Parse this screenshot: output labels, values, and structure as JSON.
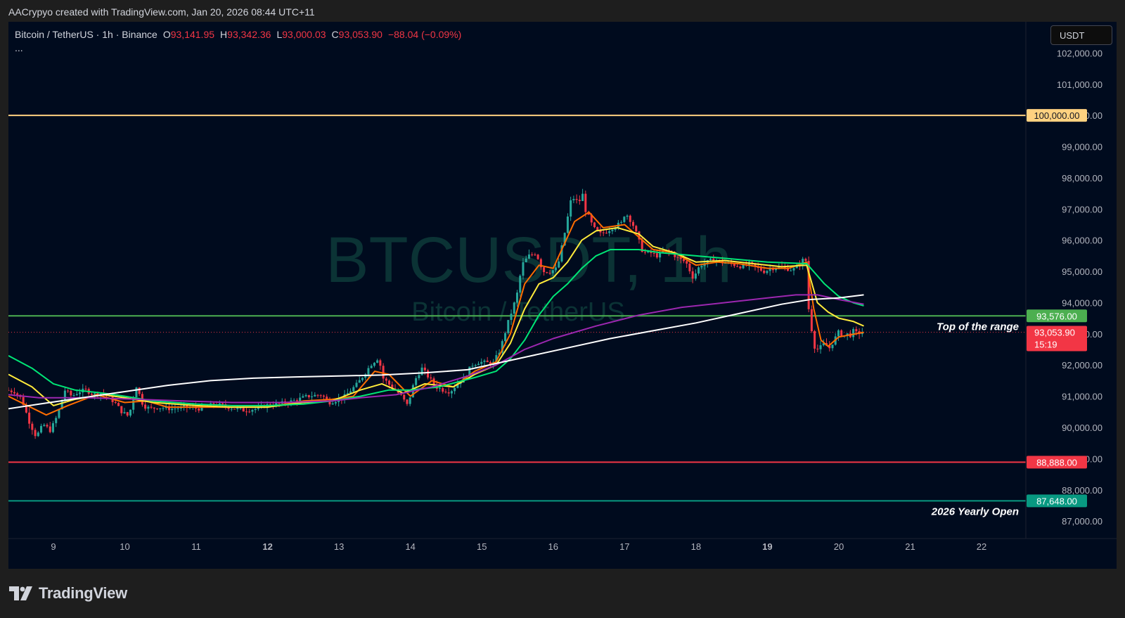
{
  "header": {
    "credit": "AACrypyo created with TradingView.com, Jan 20, 2026 08:44 UTC+11"
  },
  "legend": {
    "symbol": "Bitcoin / TetherUS · 1h · Binance",
    "open_label": "O",
    "open": "93,141.95",
    "high_label": "H",
    "high": "93,342.36",
    "low_label": "L",
    "low": "93,000.03",
    "close_label": "C",
    "close": "93,053.90",
    "change": "−88.04 (−0.09%)",
    "more": "..."
  },
  "currency_button": "USDT",
  "watermark": {
    "ticker": "BTCUSDT, 1h",
    "name": "Bitcoin / TetherUS"
  },
  "brand": {
    "name": "TradingView"
  },
  "colors": {
    "up": "#26a69a",
    "down": "#f23645",
    "ema_fast": "#ff6d00",
    "ema_mid": "#ffeb3b",
    "ema_slow": "#00e676",
    "ma_purple": "#9c27b0",
    "ma_white": "#ffffff",
    "level_100k": "#ffd180",
    "level_range": "#4caf50",
    "level_88888": "#f23645",
    "level_open": "#089981"
  },
  "chart_data": {
    "type": "candlestick",
    "x_axis": {
      "ticks": [
        {
          "day": 9,
          "label": "9"
        },
        {
          "day": 10,
          "label": "10"
        },
        {
          "day": 11,
          "label": "11"
        },
        {
          "day": 12,
          "label": "12",
          "bold": true
        },
        {
          "day": 13,
          "label": "13"
        },
        {
          "day": 14,
          "label": "14"
        },
        {
          "day": 15,
          "label": "15"
        },
        {
          "day": 16,
          "label": "16"
        },
        {
          "day": 17,
          "label": "17"
        },
        {
          "day": 18,
          "label": "18"
        },
        {
          "day": 19,
          "label": "19",
          "bold": true
        },
        {
          "day": 20,
          "label": "20"
        },
        {
          "day": 21,
          "label": "21"
        },
        {
          "day": 22,
          "label": "22"
        }
      ],
      "range_days": [
        8.37,
        22.62
      ]
    },
    "y_axis": {
      "ticks": [
        87000,
        88000,
        89000,
        90000,
        91000,
        92000,
        93000,
        94000,
        95000,
        96000,
        97000,
        98000,
        99000,
        100000,
        101000,
        102000
      ],
      "tick_labels": [
        "87,000.00",
        "88,000.00",
        "89,000.00",
        "90,000.00",
        "91,000.00",
        "92,000.00",
        "93,000.00",
        "94,000.00",
        "95,000.00",
        "96,000.00",
        "97,000.00",
        "98,000.00",
        "99,000.00",
        "100,000.00",
        "101,000.00",
        "102,000.00"
      ],
      "range": [
        86440,
        103000
      ]
    },
    "horizontal_levels": [
      {
        "name": "100k",
        "value": 100000,
        "label": "100,000.00",
        "color": "#ffd180",
        "text_color": "#131722"
      },
      {
        "name": "top-of-range",
        "value": 93576,
        "label": "93,576.00",
        "color": "#4caf50",
        "text_color": "#ffffff",
        "annotation": "Top of the range"
      },
      {
        "name": "level-88888",
        "value": 88888,
        "label": "88,888.00",
        "color": "#f23645",
        "text_color": "#ffffff"
      },
      {
        "name": "yearly-open",
        "value": 87648,
        "label": "87,648.00",
        "color": "#089981",
        "text_color": "#ffffff",
        "annotation": "2026 Yearly Open"
      }
    ],
    "last_price": {
      "value": 93053.9,
      "label": "93,053.90",
      "countdown": "15:19",
      "color": "#f23645"
    },
    "price_path": [
      [
        8.37,
        91200
      ],
      [
        8.5,
        91150
      ],
      [
        8.6,
        90900
      ],
      [
        8.7,
        90200
      ],
      [
        8.8,
        89700
      ],
      [
        8.9,
        90100
      ],
      [
        9.0,
        89900
      ],
      [
        9.1,
        90400
      ],
      [
        9.2,
        91200
      ],
      [
        9.3,
        91000
      ],
      [
        9.4,
        91150
      ],
      [
        9.5,
        91200
      ],
      [
        9.6,
        91050
      ],
      [
        9.7,
        91100
      ],
      [
        9.8,
        91000
      ],
      [
        9.9,
        90800
      ],
      [
        10.0,
        90500
      ],
      [
        10.1,
        90350
      ],
      [
        10.15,
        90900
      ],
      [
        10.2,
        91350
      ],
      [
        10.3,
        90700
      ],
      [
        10.4,
        90600
      ],
      [
        10.5,
        90650
      ],
      [
        10.7,
        90600
      ],
      [
        10.9,
        90650
      ],
      [
        11.1,
        90600
      ],
      [
        11.3,
        90750
      ],
      [
        11.5,
        90650
      ],
      [
        11.7,
        90550
      ],
      [
        11.9,
        90600
      ],
      [
        12.0,
        90700
      ],
      [
        12.2,
        90750
      ],
      [
        12.4,
        90850
      ],
      [
        12.6,
        91000
      ],
      [
        12.8,
        91050
      ],
      [
        12.9,
        90800
      ],
      [
        13.1,
        90950
      ],
      [
        13.3,
        91400
      ],
      [
        13.5,
        92050
      ],
      [
        13.6,
        92250
      ],
      [
        13.65,
        91600
      ],
      [
        13.8,
        91250
      ],
      [
        13.9,
        91050
      ],
      [
        14.0,
        90700
      ],
      [
        14.1,
        91500
      ],
      [
        14.2,
        91900
      ],
      [
        14.3,
        91600
      ],
      [
        14.4,
        91300
      ],
      [
        14.5,
        91200
      ],
      [
        14.6,
        91150
      ],
      [
        14.7,
        91400
      ],
      [
        14.8,
        91600
      ],
      [
        14.9,
        92000
      ],
      [
        15.0,
        92100
      ],
      [
        15.2,
        92050
      ],
      [
        15.3,
        92500
      ],
      [
        15.4,
        93300
      ],
      [
        15.5,
        94000
      ],
      [
        15.55,
        94400
      ],
      [
        15.6,
        95200
      ],
      [
        15.7,
        95500
      ],
      [
        15.8,
        95600
      ],
      [
        15.9,
        95000
      ],
      [
        16.0,
        95000
      ],
      [
        16.1,
        95100
      ],
      [
        16.2,
        96200
      ],
      [
        16.25,
        96800
      ],
      [
        16.3,
        97400
      ],
      [
        16.4,
        97200
      ],
      [
        16.45,
        97500
      ],
      [
        16.5,
        96900
      ],
      [
        16.55,
        96700
      ],
      [
        16.6,
        96400
      ],
      [
        16.7,
        96200
      ],
      [
        16.8,
        96300
      ],
      [
        16.9,
        96450
      ],
      [
        17.0,
        96550
      ],
      [
        17.05,
        96900
      ],
      [
        17.15,
        96550
      ],
      [
        17.2,
        96250
      ],
      [
        17.3,
        95600
      ],
      [
        17.4,
        95600
      ],
      [
        17.5,
        95500
      ],
      [
        17.6,
        95650
      ],
      [
        17.7,
        95600
      ],
      [
        17.8,
        95400
      ],
      [
        17.9,
        95300
      ],
      [
        18.0,
        94800
      ],
      [
        18.1,
        95200
      ],
      [
        18.2,
        95300
      ],
      [
        18.3,
        95400
      ],
      [
        18.4,
        95300
      ],
      [
        18.5,
        95250
      ],
      [
        18.6,
        95200
      ],
      [
        18.7,
        95150
      ],
      [
        18.8,
        95250
      ],
      [
        18.9,
        95100
      ],
      [
        19.0,
        95000
      ],
      [
        19.1,
        95100
      ],
      [
        19.2,
        95150
      ],
      [
        19.3,
        95100
      ],
      [
        19.4,
        95050
      ],
      [
        19.5,
        95250
      ],
      [
        19.55,
        95400
      ],
      [
        19.6,
        95300
      ],
      [
        19.62,
        93800
      ],
      [
        19.65,
        93300
      ],
      [
        19.7,
        92600
      ],
      [
        19.75,
        92500
      ],
      [
        19.8,
        92600
      ],
      [
        19.85,
        92700
      ],
      [
        19.9,
        92500
      ],
      [
        19.95,
        92700
      ],
      [
        20.0,
        92900
      ],
      [
        20.05,
        93100
      ],
      [
        20.1,
        92900
      ],
      [
        20.15,
        93000
      ],
      [
        20.2,
        92950
      ],
      [
        20.25,
        93100
      ],
      [
        20.3,
        93000
      ],
      [
        20.35,
        93050
      ]
    ],
    "moving_averages": [
      {
        "name": "ema-fast",
        "color": "#ff6d00",
        "points": [
          [
            8.37,
            91000
          ],
          [
            8.9,
            90400
          ],
          [
            9.2,
            90700
          ],
          [
            9.6,
            91050
          ],
          [
            10.0,
            90800
          ],
          [
            10.3,
            90850
          ],
          [
            10.6,
            90650
          ],
          [
            11.0,
            90650
          ],
          [
            11.5,
            90650
          ],
          [
            12.0,
            90650
          ],
          [
            12.5,
            90850
          ],
          [
            12.9,
            90900
          ],
          [
            13.2,
            91000
          ],
          [
            13.5,
            91800
          ],
          [
            13.7,
            91700
          ],
          [
            14.0,
            91000
          ],
          [
            14.3,
            91500
          ],
          [
            14.6,
            91300
          ],
          [
            14.9,
            91800
          ],
          [
            15.2,
            92100
          ],
          [
            15.4,
            93000
          ],
          [
            15.6,
            94600
          ],
          [
            15.8,
            95200
          ],
          [
            16.0,
            95100
          ],
          [
            16.3,
            96600
          ],
          [
            16.5,
            96900
          ],
          [
            16.7,
            96400
          ],
          [
            17.0,
            96500
          ],
          [
            17.2,
            96100
          ],
          [
            17.4,
            95700
          ],
          [
            17.7,
            95600
          ],
          [
            18.0,
            95200
          ],
          [
            18.3,
            95300
          ],
          [
            18.6,
            95250
          ],
          [
            19.0,
            95100
          ],
          [
            19.3,
            95100
          ],
          [
            19.55,
            95300
          ],
          [
            19.65,
            93800
          ],
          [
            19.75,
            92800
          ],
          [
            19.85,
            92600
          ],
          [
            20.0,
            92900
          ],
          [
            20.35,
            93050
          ]
        ]
      },
      {
        "name": "ema-mid",
        "color": "#ffeb3b",
        "points": [
          [
            8.37,
            91700
          ],
          [
            8.7,
            91300
          ],
          [
            9.0,
            90700
          ],
          [
            9.3,
            90900
          ],
          [
            9.7,
            91050
          ],
          [
            10.0,
            90950
          ],
          [
            10.4,
            90800
          ],
          [
            11.0,
            90700
          ],
          [
            11.5,
            90650
          ],
          [
            12.0,
            90650
          ],
          [
            12.5,
            90800
          ],
          [
            12.9,
            90850
          ],
          [
            13.3,
            91200
          ],
          [
            13.6,
            91400
          ],
          [
            13.9,
            91100
          ],
          [
            14.2,
            91400
          ],
          [
            14.6,
            91300
          ],
          [
            14.9,
            91700
          ],
          [
            15.2,
            92000
          ],
          [
            15.4,
            92700
          ],
          [
            15.6,
            93800
          ],
          [
            15.8,
            94600
          ],
          [
            16.0,
            94800
          ],
          [
            16.2,
            95300
          ],
          [
            16.4,
            96000
          ],
          [
            16.6,
            96300
          ],
          [
            16.9,
            96400
          ],
          [
            17.2,
            96200
          ],
          [
            17.4,
            95800
          ],
          [
            17.7,
            95600
          ],
          [
            18.0,
            95300
          ],
          [
            18.4,
            95350
          ],
          [
            18.8,
            95250
          ],
          [
            19.2,
            95150
          ],
          [
            19.55,
            95200
          ],
          [
            19.7,
            94000
          ],
          [
            19.85,
            93700
          ],
          [
            20.0,
            93500
          ],
          [
            20.2,
            93400
          ],
          [
            20.35,
            93250
          ]
        ]
      },
      {
        "name": "ema-slow",
        "color": "#00e676",
        "points": [
          [
            8.37,
            92300
          ],
          [
            8.7,
            91900
          ],
          [
            9.0,
            91400
          ],
          [
            9.3,
            91200
          ],
          [
            9.7,
            91100
          ],
          [
            10.0,
            91000
          ],
          [
            10.4,
            90850
          ],
          [
            11.0,
            90750
          ],
          [
            11.5,
            90700
          ],
          [
            12.0,
            90700
          ],
          [
            12.5,
            90750
          ],
          [
            12.9,
            90850
          ],
          [
            13.3,
            91000
          ],
          [
            13.7,
            91200
          ],
          [
            14.0,
            91200
          ],
          [
            14.4,
            91300
          ],
          [
            14.9,
            91600
          ],
          [
            15.2,
            91800
          ],
          [
            15.4,
            92200
          ],
          [
            15.6,
            92800
          ],
          [
            15.8,
            93600
          ],
          [
            16.0,
            94200
          ],
          [
            16.2,
            94600
          ],
          [
            16.4,
            95100
          ],
          [
            16.6,
            95500
          ],
          [
            16.8,
            95700
          ],
          [
            17.2,
            95700
          ],
          [
            17.5,
            95600
          ],
          [
            18.0,
            95500
          ],
          [
            18.5,
            95400
          ],
          [
            19.0,
            95300
          ],
          [
            19.55,
            95250
          ],
          [
            19.8,
            94600
          ],
          [
            20.0,
            94200
          ],
          [
            20.2,
            94000
          ],
          [
            20.35,
            93900
          ]
        ]
      },
      {
        "name": "ma-purple",
        "color": "#9c27b0",
        "points": [
          [
            8.37,
            91050
          ],
          [
            8.8,
            90950
          ],
          [
            9.5,
            90950
          ],
          [
            10.2,
            90900
          ],
          [
            10.8,
            90850
          ],
          [
            11.5,
            90800
          ],
          [
            12.2,
            90800
          ],
          [
            12.9,
            90850
          ],
          [
            13.3,
            90950
          ],
          [
            13.8,
            91050
          ],
          [
            14.3,
            91300
          ],
          [
            14.8,
            91650
          ],
          [
            15.2,
            92000
          ],
          [
            15.6,
            92500
          ],
          [
            16.0,
            92850
          ],
          [
            16.6,
            93250
          ],
          [
            17.2,
            93600
          ],
          [
            17.8,
            93850
          ],
          [
            18.4,
            94000
          ],
          [
            19.0,
            94150
          ],
          [
            19.4,
            94250
          ],
          [
            19.7,
            94250
          ],
          [
            20.0,
            94100
          ],
          [
            20.35,
            93950
          ]
        ]
      },
      {
        "name": "ma-white",
        "color": "#ffffff",
        "points": [
          [
            8.37,
            90600
          ],
          [
            8.8,
            90750
          ],
          [
            9.4,
            90950
          ],
          [
            10.0,
            91150
          ],
          [
            10.6,
            91350
          ],
          [
            11.2,
            91500
          ],
          [
            11.8,
            91580
          ],
          [
            12.4,
            91620
          ],
          [
            13.0,
            91650
          ],
          [
            13.6,
            91680
          ],
          [
            14.2,
            91750
          ],
          [
            14.8,
            91850
          ],
          [
            15.2,
            92050
          ],
          [
            15.6,
            92250
          ],
          [
            16.2,
            92550
          ],
          [
            16.8,
            92850
          ],
          [
            17.4,
            93100
          ],
          [
            18.0,
            93350
          ],
          [
            18.6,
            93650
          ],
          [
            19.2,
            93950
          ],
          [
            19.6,
            94100
          ],
          [
            20.0,
            94150
          ],
          [
            20.35,
            94250
          ]
        ]
      }
    ]
  }
}
